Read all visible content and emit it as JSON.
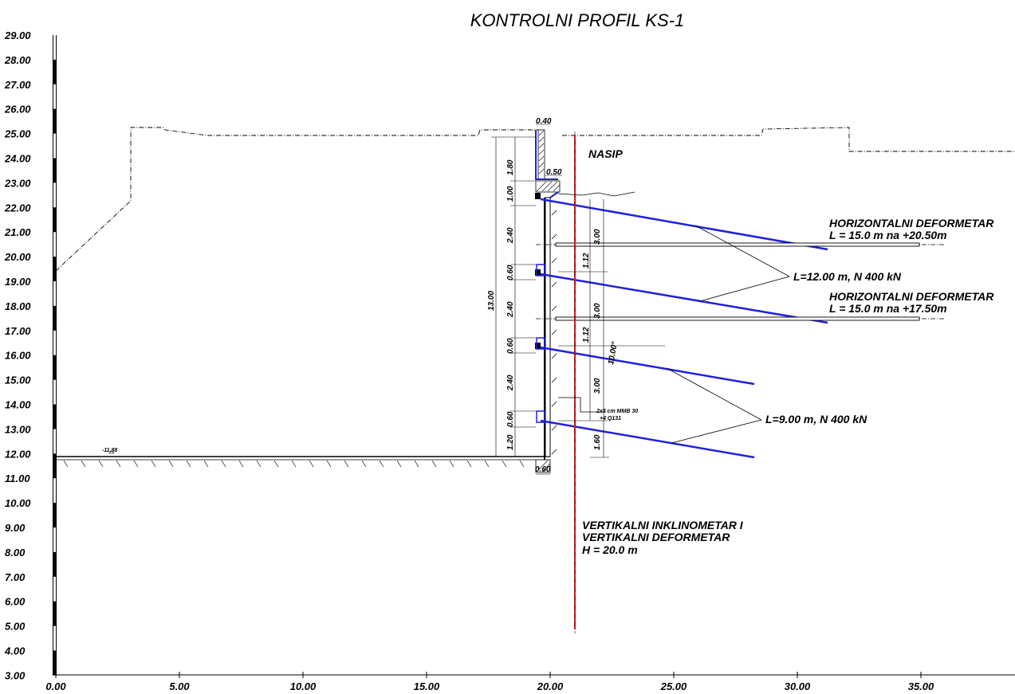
{
  "title": "KONTROLNI PROFIL KS-1",
  "axes": {
    "y_ticks": [
      "29.00",
      "28.00",
      "27.00",
      "26.00",
      "25.00",
      "24.00",
      "23.00",
      "22.00",
      "21.00",
      "20.00",
      "19.00",
      "18.00",
      "17.00",
      "16.00",
      "15.00",
      "14.00",
      "13.00",
      "12.00",
      "11.00",
      "10.00",
      "9.00",
      "8.00",
      "7.00",
      "6.00",
      "5.00",
      "4.00",
      "3.00"
    ],
    "x_ticks": [
      "0.00",
      "5.00",
      "10.00",
      "15.00",
      "20.00",
      "25.00",
      "30.00",
      "35.00"
    ]
  },
  "labels": {
    "nasip": "NASIP",
    "hd1_line1": "HORIZONTALNI DEFORMETAR",
    "hd1_line2": "L = 15.0 m na +20.50m",
    "hd2_line1": "HORIZONTALNI DEFORMETAR",
    "hd2_line2": "L = 15.0 m na +17.50m",
    "anchor_long": "L=12.00 m, N 400 kN",
    "anchor_short": "L=9.00 m, N 400 kN",
    "vi_line1": "VERTIKALNI INKLINOMETAR I",
    "vi_line2": "VERTIKALNI DEFORMETAR",
    "vi_line3": "H = 20.0 m",
    "level_mark": "-11.88",
    "shotcrete_line1": "2x5 cm MMB 30",
    "shotcrete_line2": "+4 Q131"
  },
  "dimensions": {
    "top_width": "0.40",
    "cap_width": "0.50",
    "base_width": "0.60",
    "total_height": "13.00",
    "left_chain": [
      "1.80",
      "1.00",
      "2.40",
      "0.60",
      "2.40",
      "0.60",
      "2.40",
      "0.60",
      "1.20"
    ],
    "right_chain": [
      "3.00",
      "1.12",
      "3.00",
      "1.12",
      "3.00",
      "1.60"
    ],
    "angle": "10.00°"
  }
}
